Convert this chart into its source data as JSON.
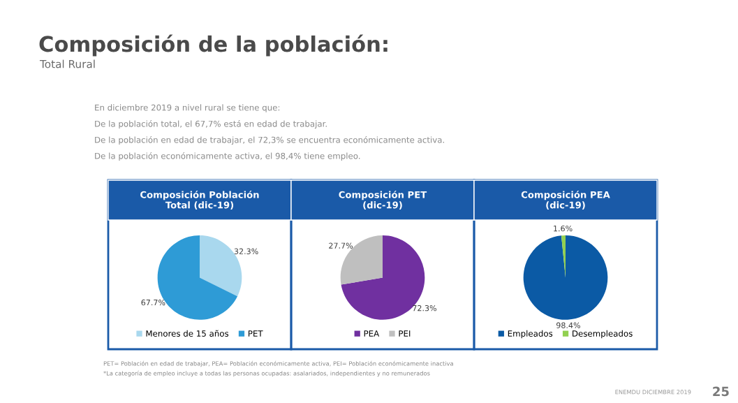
{
  "chart_data": [
    {
      "type": "other",
      "title": "Composición de la población:",
      "subtitle": "Total Rural",
      "annotations": [
        "En diciembre 2019 a nivel rural se tiene que:",
        "De la población total, el 67,7% está en edad de trabajar.",
        "De la población en edad de trabajar, el 72,3% se encuentra económicamente activa.",
        "De la población económicamente activa, el 98,4% tiene empleo.",
        "PET= Población en edad de trabajar, PEA= Población económicamente activa, PEI= Población económicamente inactiva",
        "*La categoría de empleo incluye a todas las personas ocupadas: asalariados, independientes y no remunerados",
        "ENEMDU DICIEMBRE 2019",
        "25"
      ]
    },
    {
      "type": "pie",
      "title": "Composición Población\nTotal (dic-19)",
      "categories": [
        "Menores de 15 años",
        "PET"
      ],
      "values": [
        32.3,
        67.7
      ],
      "colors": [
        "#a9d8ee",
        "#2e9bd6"
      ],
      "value_labels": [
        "32.3%",
        "67.7%"
      ],
      "legend": "bottom"
    },
    {
      "type": "pie",
      "title": "Composición PET\n(dic-19)",
      "categories": [
        "PEA",
        "PEI"
      ],
      "values": [
        72.3,
        27.7
      ],
      "colors": [
        "#7030a0",
        "#bfbfbf"
      ],
      "value_labels": [
        "72.3%",
        "27.7%"
      ],
      "legend": "bottom"
    },
    {
      "type": "pie",
      "title": "Composición PEA\n(dic-19)",
      "categories": [
        "Empleados",
        "Desempleados"
      ],
      "values": [
        98.4,
        1.6
      ],
      "colors": [
        "#0b5aa5",
        "#92d050"
      ],
      "value_labels": [
        "98.4%",
        "1.6%"
      ],
      "legend": "bottom"
    }
  ]
}
